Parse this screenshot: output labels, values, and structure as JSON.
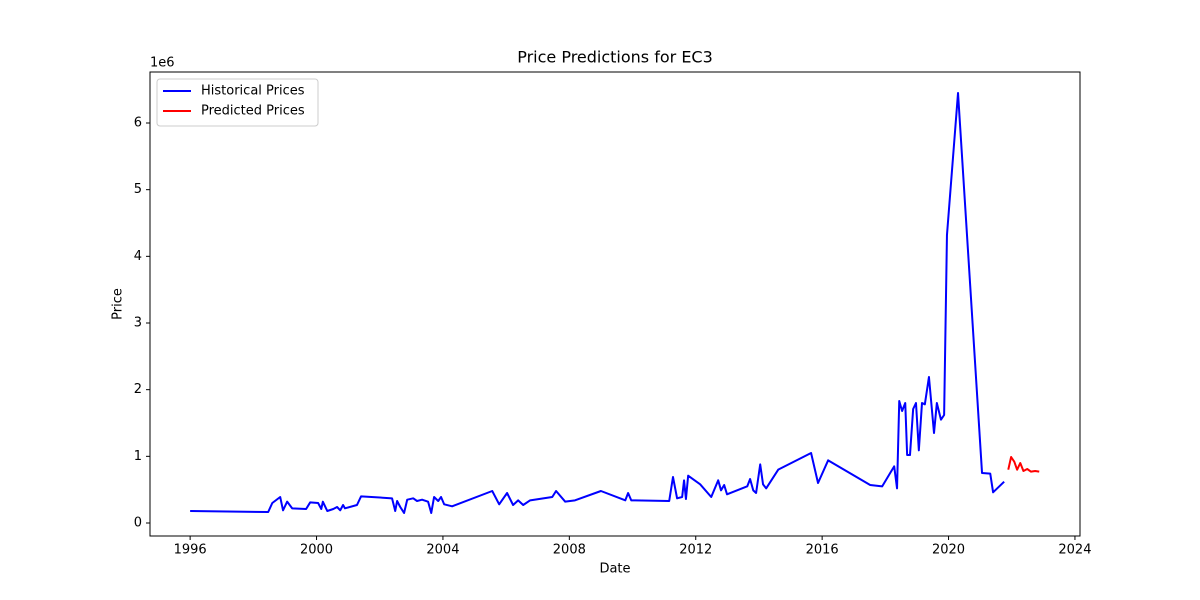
{
  "chart_data": {
    "type": "line",
    "title": "Price Predictions for EC3",
    "x_label": "Date",
    "y_label": "Price",
    "y_offset_label": "1e6",
    "legend": "upper left",
    "xlim": [
      1994.73,
      2024.16
    ],
    "ylim": [
      -0.195,
      6.765
    ],
    "xticks": [
      1996,
      2000,
      2004,
      2008,
      2012,
      2016,
      2020,
      2024
    ],
    "yticks": [
      0,
      1,
      2,
      3,
      4,
      5,
      6
    ],
    "series": [
      {
        "name": "Historical Prices",
        "color": "#0000ff",
        "x": [
          1996.0,
          1998.47,
          1998.6,
          1998.85,
          1998.94,
          1999.07,
          1999.23,
          1999.67,
          1999.8,
          2000.05,
          2000.15,
          2000.2,
          2000.34,
          2000.53,
          2000.65,
          2000.75,
          2000.84,
          2000.9,
          2001.28,
          2001.41,
          2002.39,
          2002.49,
          2002.55,
          2002.65,
          2002.77,
          2002.87,
          2003.06,
          2003.18,
          2003.34,
          2003.53,
          2003.63,
          2003.72,
          2003.85,
          2003.94,
          2004.04,
          2004.29,
          2005.56,
          2005.78,
          2006.03,
          2006.22,
          2006.38,
          2006.54,
          2006.76,
          2007.46,
          2007.58,
          2007.87,
          2008.18,
          2009.0,
          2009.77,
          2009.86,
          2009.96,
          2011.16,
          2011.28,
          2011.41,
          2011.57,
          2011.63,
          2011.69,
          2011.76,
          2012.14,
          2012.49,
          2012.71,
          2012.8,
          2012.9,
          2012.99,
          2013.63,
          2013.72,
          2013.82,
          2013.91,
          2014.04,
          2014.13,
          2014.23,
          2014.61,
          2015.65,
          2015.87,
          2016.19,
          2017.52,
          2017.9,
          2018.28,
          2018.37,
          2018.44,
          2018.53,
          2018.63,
          2018.69,
          2018.78,
          2018.88,
          2018.97,
          2019.06,
          2019.16,
          2019.25,
          2019.38,
          2019.54,
          2019.63,
          2019.76,
          2019.86,
          2019.95,
          2020.3,
          2021.06,
          2021.32,
          2021.41,
          2021.76
        ],
        "values": [
          0.18,
          0.165,
          0.3,
          0.39,
          0.19,
          0.32,
          0.22,
          0.21,
          0.31,
          0.3,
          0.21,
          0.32,
          0.18,
          0.21,
          0.24,
          0.19,
          0.27,
          0.22,
          0.27,
          0.4,
          0.37,
          0.18,
          0.33,
          0.24,
          0.15,
          0.35,
          0.37,
          0.33,
          0.35,
          0.32,
          0.15,
          0.39,
          0.33,
          0.39,
          0.28,
          0.25,
          0.48,
          0.28,
          0.45,
          0.27,
          0.34,
          0.27,
          0.34,
          0.39,
          0.48,
          0.32,
          0.34,
          0.48,
          0.34,
          0.45,
          0.34,
          0.33,
          0.69,
          0.37,
          0.39,
          0.64,
          0.36,
          0.71,
          0.58,
          0.39,
          0.64,
          0.49,
          0.57,
          0.43,
          0.55,
          0.66,
          0.49,
          0.45,
          0.88,
          0.58,
          0.52,
          0.8,
          1.05,
          0.6,
          0.94,
          0.57,
          0.55,
          0.85,
          0.52,
          1.83,
          1.68,
          1.8,
          1.02,
          1.02,
          1.71,
          1.8,
          1.09,
          1.8,
          1.78,
          2.19,
          1.35,
          1.8,
          1.55,
          1.62,
          4.32,
          6.45,
          0.75,
          0.74,
          0.46,
          0.62
        ]
      },
      {
        "name": "Predicted Prices",
        "color": "#ff0000",
        "x": [
          2021.89,
          2021.98,
          2022.08,
          2022.17,
          2022.27,
          2022.37,
          2022.49,
          2022.61,
          2022.74,
          2022.87
        ],
        "values": [
          0.8,
          0.99,
          0.92,
          0.8,
          0.9,
          0.78,
          0.81,
          0.77,
          0.78,
          0.77
        ]
      }
    ]
  }
}
